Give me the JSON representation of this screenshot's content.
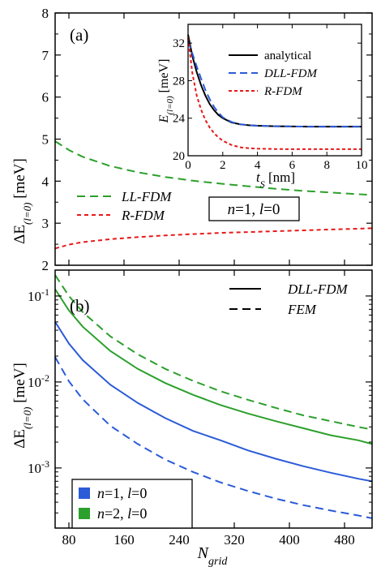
{
  "chart_data": [
    {
      "panel_label": "(a)",
      "type": "line",
      "x": [
        60,
        80,
        100,
        140,
        180,
        220,
        260,
        300,
        340,
        380,
        420,
        460,
        500,
        520
      ],
      "xlim": [
        60,
        520
      ],
      "ylim": [
        2,
        8
      ],
      "yticks": [
        "2",
        "3",
        "4",
        "5",
        "6",
        "7",
        "8"
      ],
      "ylabel_main": "ΔE",
      "ylabel_sub": "(l=0)",
      "ylabel_unit": " [meV]",
      "series": [
        {
          "name": "LL-FDM",
          "color": "#2ca02c",
          "dash": "10,6",
          "values": [
            4.95,
            4.74,
            4.58,
            4.36,
            4.21,
            4.1,
            4.01,
            3.94,
            3.88,
            3.82,
            3.77,
            3.73,
            3.69,
            3.67
          ]
        },
        {
          "name": "R-FDM",
          "color": "#e8191a",
          "dash": "5,4",
          "values": [
            2.4,
            2.49,
            2.55,
            2.62,
            2.67,
            2.71,
            2.74,
            2.77,
            2.79,
            2.81,
            2.83,
            2.85,
            2.87,
            2.88
          ]
        }
      ],
      "annotation_box": {
        "n_var": "n",
        "n_rest": "=1, ",
        "l_var": "l",
        "l_rest": "=0"
      },
      "inset": {
        "type": "line",
        "xlim": [
          0,
          10
        ],
        "ylim": [
          20,
          34
        ],
        "xticks": [
          "0",
          "2",
          "4",
          "6",
          "8",
          "10"
        ],
        "yticks": [
          "20",
          "24",
          "28",
          "32"
        ],
        "xlabel_main": "t",
        "xlabel_sub": "S",
        "xlabel_unit": " [nm]",
        "ylabel_main": "E",
        "ylabel_sub": "(l=0)",
        "ylabel_unit": " [meV]",
        "x": [
          0,
          0.25,
          0.5,
          0.75,
          1,
          1.25,
          1.5,
          1.75,
          2,
          2.5,
          3,
          3.5,
          4,
          5,
          6,
          7,
          8,
          9,
          10
        ],
        "series": [
          {
            "name": "analytical",
            "color": "#000000",
            "dash": "",
            "values": [
              32.9,
              30.6,
              28.9,
              27.5,
              26.4,
              25.5,
              24.85,
              24.35,
              24.0,
              23.55,
              23.35,
              23.25,
              23.2,
              23.15,
              23.12,
              23.1,
              23.1,
              23.1,
              23.1
            ]
          },
          {
            "name": "DLL-FDM",
            "color": "#2b5bd7",
            "dash": "9,5",
            "values": [
              32.2,
              30.9,
              29.5,
              28.2,
              27.0,
              26.0,
              25.2,
              24.6,
              24.1,
              23.6,
              23.35,
              23.25,
              23.2,
              23.15,
              23.12,
              23.1,
              23.1,
              23.1,
              23.1
            ]
          },
          {
            "name": "R-FDM",
            "color": "#e8191a",
            "dash": "4,3",
            "values": [
              32.6,
              28.8,
              26.4,
              24.9,
              23.8,
              23.0,
              22.4,
              21.95,
              21.6,
              21.15,
              20.9,
              20.8,
              20.75,
              20.72,
              20.7,
              20.7,
              20.7,
              20.7,
              20.7
            ]
          }
        ]
      }
    },
    {
      "panel_label": "(b)",
      "type": "line",
      "yscale": "log",
      "x": [
        60,
        80,
        100,
        140,
        180,
        220,
        260,
        300,
        340,
        380,
        420,
        460,
        500,
        520
      ],
      "xlim": [
        60,
        520
      ],
      "ylim": [
        0.0002,
        0.2
      ],
      "xticks": [
        "80",
        "160",
        "240",
        "320",
        "400",
        "480"
      ],
      "yticks": [
        {
          "base": "10",
          "exp": "-3",
          "value": 0.001
        },
        {
          "base": "10",
          "exp": "-2",
          "value": 0.01
        },
        {
          "base": "10",
          "exp": "-1",
          "value": 0.1
        }
      ],
      "xlabel_main": "N",
      "xlabel_sub": "grid",
      "ylabel_main": "ΔE",
      "ylabel_sub": "(l=0)",
      "ylabel_unit": " [meV]",
      "series": [
        {
          "state": "n=2, l=0",
          "method": "FEM",
          "color": "#2ca02c",
          "dash": "10,6",
          "values": [
            0.175,
            0.1,
            0.065,
            0.034,
            0.021,
            0.0142,
            0.0103,
            0.0078,
            0.0062,
            0.005,
            0.0041,
            0.0035,
            0.003,
            0.0028
          ]
        },
        {
          "state": "n=2, l=0",
          "method": "DLL-FDM",
          "color": "#2ca02c",
          "dash": "",
          "values": [
            0.12,
            0.068,
            0.044,
            0.023,
            0.0142,
            0.0097,
            0.0071,
            0.0054,
            0.0043,
            0.0035,
            0.0029,
            0.0024,
            0.0021,
            0.0019
          ]
        },
        {
          "state": "n=1, l=0",
          "method": "DLL-FDM",
          "color": "#2b5bd7",
          "dash": "",
          "values": [
            0.05,
            0.028,
            0.018,
            0.0093,
            0.0057,
            0.0038,
            0.0027,
            0.0021,
            0.0016,
            0.00128,
            0.00105,
            0.00088,
            0.00075,
            0.0007
          ]
        },
        {
          "state": "n=1, l=0",
          "method": "FEM",
          "color": "#2b5bd7",
          "dash": "10,6",
          "values": [
            0.0195,
            0.0102,
            0.0063,
            0.0031,
            0.0019,
            0.00125,
            0.0009,
            0.00068,
            0.00054,
            0.00044,
            0.00037,
            0.00032,
            0.00028,
            0.00026
          ]
        }
      ],
      "legend_methods": [
        {
          "label": "DLL-FDM",
          "dash": ""
        },
        {
          "label": "FEM",
          "dash": "10,6"
        }
      ],
      "legend_states": [
        {
          "n_var": "n",
          "n_rest": "=1, ",
          "l_var": "l",
          "l_rest": "=0",
          "color": "#2b5bd7"
        },
        {
          "n_var": "n",
          "n_rest": "=2, ",
          "l_var": "l",
          "l_rest": "=0",
          "color": "#2ca02c"
        }
      ]
    }
  ]
}
